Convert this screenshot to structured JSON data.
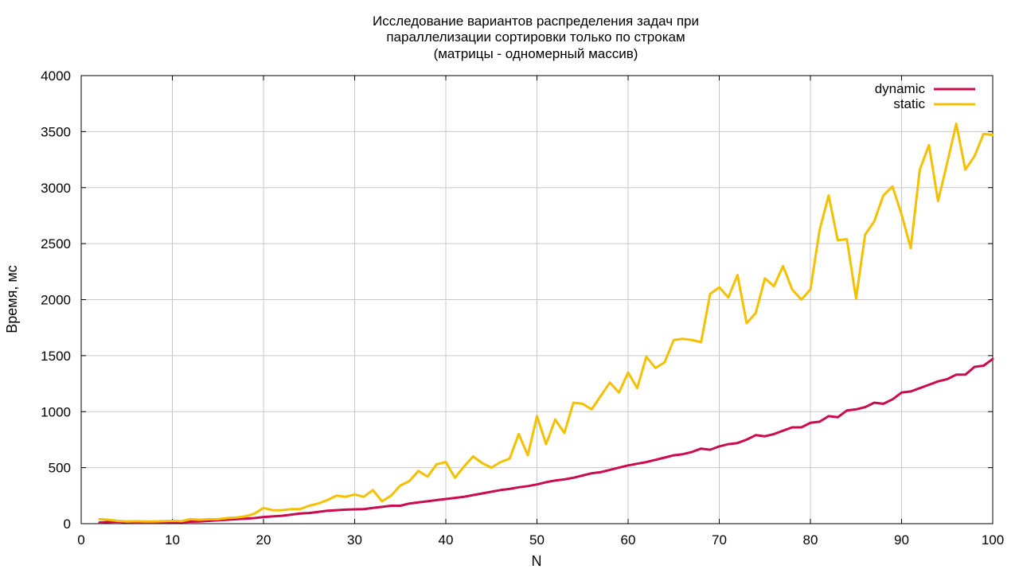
{
  "chart_data": {
    "type": "line",
    "title": [
      "Исследование вариантов распределения задач при",
      "параллелизации сортировки только по строкам",
      "(матрицы - одномерный массив)"
    ],
    "xlabel": "N",
    "ylabel": "Время, мс",
    "xlim": [
      0,
      100
    ],
    "ylim": [
      0,
      4000
    ],
    "xticks": [
      "0",
      "10",
      "20",
      "30",
      "40",
      "50",
      "60",
      "70",
      "80",
      "90",
      "100"
    ],
    "yticks": [
      "0",
      "500",
      "1000",
      "1500",
      "2000",
      "2500",
      "3000",
      "3500",
      "4000"
    ],
    "grid": true,
    "legend_position": "top-right",
    "x": [
      2,
      3,
      4,
      5,
      6,
      7,
      8,
      9,
      10,
      11,
      12,
      13,
      14,
      15,
      16,
      17,
      18,
      19,
      20,
      21,
      22,
      23,
      24,
      25,
      26,
      27,
      28,
      29,
      30,
      31,
      32,
      33,
      34,
      35,
      36,
      37,
      38,
      39,
      40,
      41,
      42,
      43,
      44,
      45,
      46,
      47,
      48,
      49,
      50,
      51,
      52,
      53,
      54,
      55,
      56,
      57,
      58,
      59,
      60,
      61,
      62,
      63,
      64,
      65,
      66,
      67,
      68,
      69,
      70,
      71,
      72,
      73,
      74,
      75,
      76,
      77,
      78,
      79,
      80,
      81,
      82,
      83,
      84,
      85,
      86,
      87,
      88,
      89,
      90,
      91,
      92,
      93,
      94,
      95,
      96,
      97,
      98,
      99,
      100
    ],
    "series": [
      {
        "name": "dynamic",
        "color": "#cc0a4e",
        "values": [
          10,
          15,
          18,
          12,
          10,
          10,
          10,
          12,
          12,
          14,
          18,
          20,
          25,
          30,
          35,
          40,
          45,
          50,
          60,
          65,
          70,
          80,
          90,
          95,
          105,
          115,
          120,
          125,
          128,
          130,
          140,
          150,
          160,
          160,
          180,
          190,
          200,
          210,
          220,
          230,
          240,
          255,
          270,
          285,
          300,
          310,
          325,
          335,
          350,
          370,
          385,
          395,
          410,
          430,
          450,
          460,
          480,
          500,
          520,
          535,
          550,
          570,
          590,
          610,
          620,
          640,
          670,
          660,
          690,
          710,
          720,
          750,
          790,
          780,
          800,
          830,
          860,
          860,
          900,
          910,
          960,
          950,
          1010,
          1020,
          1040,
          1080,
          1070,
          1110,
          1170,
          1180,
          1210,
          1240,
          1270,
          1290,
          1330,
          1330,
          1400,
          1410,
          1470
        ]
      },
      {
        "name": "static",
        "color": "#f5c000",
        "values": [
          40,
          35,
          25,
          20,
          22,
          20,
          20,
          22,
          25,
          22,
          40,
          35,
          40,
          40,
          50,
          55,
          65,
          90,
          140,
          120,
          120,
          130,
          130,
          160,
          180,
          210,
          250,
          240,
          260,
          240,
          300,
          200,
          250,
          340,
          380,
          470,
          420,
          530,
          550,
          410,
          510,
          600,
          540,
          500,
          550,
          580,
          800,
          610,
          960,
          710,
          930,
          810,
          1080,
          1070,
          1020,
          1140,
          1260,
          1170,
          1350,
          1210,
          1490,
          1390,
          1440,
          1640,
          1650,
          1640,
          1620,
          2050,
          2110,
          2020,
          2220,
          1790,
          1880,
          2190,
          2120,
          2300,
          2090,
          2000,
          2090,
          2620,
          2930,
          2530,
          2540,
          2010,
          2580,
          2700,
          2930,
          3010,
          2760,
          2460,
          3160,
          3380,
          2880,
          3220,
          3570,
          3160,
          3280,
          3480,
          3470
        ]
      }
    ]
  }
}
